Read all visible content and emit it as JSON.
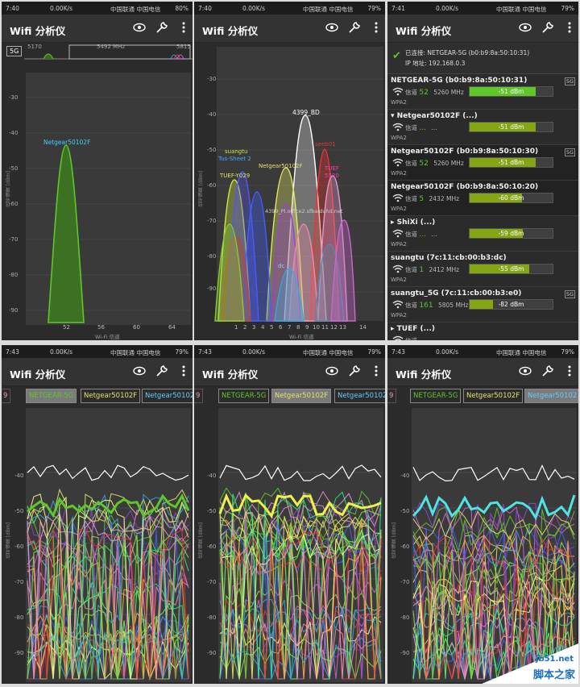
{
  "panels": [
    {
      "time": "7:40",
      "net": "0.00K/s",
      "carrier": "中国联通 中国电信",
      "battery": "80%",
      "title": "Wifi 分析仪"
    },
    {
      "time": "7:40",
      "net": "0.00K/s",
      "carrier": "中国联通 中国电信",
      "battery": "79%",
      "title": "Wifi 分析仪"
    },
    {
      "time": "7:41",
      "net": "0.00K/s",
      "carrier": "中国联通 中国电信",
      "battery": "79%",
      "title": "Wifi 分析仪"
    },
    {
      "time": "7:43",
      "net": "0.00K/s",
      "carrier": "中国联通 中国电信",
      "battery": "79%",
      "title": "Wifi 分析仪"
    },
    {
      "time": "7:43",
      "net": "0.00K/s",
      "carrier": "中国联通 中国电信",
      "battery": "79%",
      "title": "Wifi 分析仪"
    },
    {
      "time": "7:43",
      "net": "0.00K/s",
      "carrier": "中国联通 中国电信",
      "battery": "79%",
      "title": "Wifi 分析仪"
    }
  ],
  "icons": [
    "eye-icon",
    "wrench-icon",
    "overflow-menu-icon"
  ],
  "yticks": [
    "-30",
    "-40",
    "-50",
    "-60",
    "-70",
    "-80",
    "-90"
  ],
  "yaxis_label": "信号强度 [dBm]",
  "xaxis_label": "Wi-Fi 信道",
  "p1": {
    "band_label": "5G",
    "band_left": "5170",
    "band_mid": "5492 MHz",
    "band_right": "5815",
    "xticks": [
      "52",
      "56",
      "60",
      "64"
    ],
    "network_label": "Netgear50102F"
  },
  "p2": {
    "xticks": [
      "1",
      "2",
      "3",
      "4",
      "5",
      "6",
      "7",
      "8",
      "9",
      "10",
      "11",
      "12",
      "13",
      "14"
    ],
    "labels": [
      "4399_BD",
      "suangtu",
      "Tus-Sheet 2",
      "TUEF-Y029",
      "Netgear50102F",
      "seeb01",
      "TUEF",
      "5520",
      "4399_Pl.office2.sfbaiduhd.net",
      "dc"
    ]
  },
  "p3": {
    "connected_label": "已连接: NETGEAR-5G (b0:b9:8a:50:10:31)",
    "ip_label": "IP 地址: 192.168.0.3",
    "items": [
      {
        "name": "NETGEAR-5G (b0:b9:8a:50:10:31)",
        "channel_label": "信道",
        "channel": "52",
        "freq": "5260 MHz",
        "dbm": "-51 dBm",
        "level": 0.8,
        "enc": "WPA2",
        "badge": "5G",
        "color": "#5fc72b"
      },
      {
        "name": "▾ Netgear50102F (...)",
        "channel_label": "信道",
        "channel": "...",
        "freq": "...",
        "dbm": "-51 dBm",
        "level": 0.8,
        "enc": "WPA2",
        "badge": "",
        "color": "#86a514"
      },
      {
        "name": "Netgear50102F (b0:b9:8a:50:10:30)",
        "channel_label": "信道",
        "channel": "52",
        "freq": "5260 MHz",
        "dbm": "-51 dBm",
        "level": 0.8,
        "enc": "WPA2",
        "badge": "5G",
        "color": "#86a514"
      },
      {
        "name": "Netgear50102F (b0:b9:8a:50:10:20)",
        "channel_label": "信道",
        "channel": "5",
        "freq": "2432 MHz",
        "dbm": "-60 dBm",
        "level": 0.63,
        "enc": "WPA2",
        "badge": "",
        "color": "#86a514"
      },
      {
        "name": "▸ ShiXi (...)",
        "channel_label": "信道",
        "channel": "...",
        "freq": "...",
        "dbm": "-59 dBm",
        "level": 0.64,
        "enc": "WPA2",
        "badge": "",
        "color": "#86a514"
      },
      {
        "name": "suangtu (7c:11:cb:00:b3:dc)",
        "channel_label": "信道",
        "channel": "1",
        "freq": "2412 MHz",
        "dbm": "-55 dBm",
        "level": 0.72,
        "enc": "WPA2",
        "badge": "",
        "color": "#86a514"
      },
      {
        "name": "suangtu_5G (7c:11:cb:00:b3:e0)",
        "channel_label": "信道",
        "channel": "161",
        "freq": "5805 MHz",
        "dbm": "-82 dBm",
        "level": 0.28,
        "enc": "WPA2",
        "badge": "5G",
        "color": "#86a514"
      },
      {
        "name": "▸ TUEF (...)",
        "channel_label": "信道",
        "channel": "",
        "freq": "",
        "dbm": "",
        "level": 0.5,
        "enc": "",
        "badge": "",
        "color": "#86a514"
      }
    ]
  },
  "tabs": [
    {
      "a": "9",
      "b": "NETGEAR-5G",
      "c": "Netgear50102F",
      "d": "Netgear50102",
      "hi": "b"
    },
    {
      "a": "9",
      "b": "NETGEAR-5G",
      "c": "Netgear50102F",
      "d": "Netgear50102",
      "hi": "c"
    },
    {
      "a": "9",
      "b": "NETGEAR-5G",
      "c": "Netgear50102F",
      "d": "Netgear50102",
      "hi": "d"
    }
  ],
  "watermark": {
    "line1": "jb51.net",
    "line2": "脚本之家"
  },
  "colors": {
    "green": "#5fc72b",
    "panel": "#2b2b2b",
    "accent_bar": "#86a514"
  }
}
